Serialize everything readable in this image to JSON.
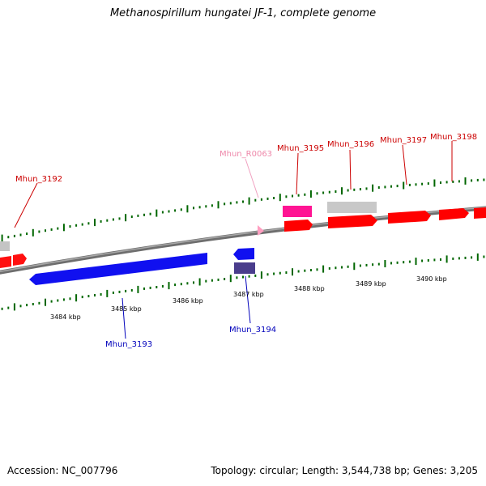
{
  "title": "Methanospirillum hungatei JF-1, complete genome",
  "footer": {
    "accession": "Accession: NC_007796",
    "topology": "Topology: circular; Length: 3,544,738 bp; Genes: 3,205"
  },
  "scale_labels": [
    "3484 kbp",
    "3485 kbp",
    "3486 kbp",
    "3487 kbp",
    "3488 kbp",
    "3489 kbp",
    "3490 kbp"
  ],
  "gene_labels": {
    "mhun_3192": "Mhun_3192",
    "mhun_r0063": "Mhun_R0063",
    "mhun_3195": "Mhun_3195",
    "mhun_3196": "Mhun_3196",
    "mhun_3197": "Mhun_3197",
    "mhun_3198": "Mhun_3198",
    "mhun_3193": "Mhun_3193",
    "mhun_3194": "Mhun_3194"
  },
  "colors": {
    "forward_label": "#cc0000",
    "reverse_label": "#0000bb",
    "rna_label": "#ee88aa",
    "tick": "#006600",
    "backbone": "#808080"
  }
}
